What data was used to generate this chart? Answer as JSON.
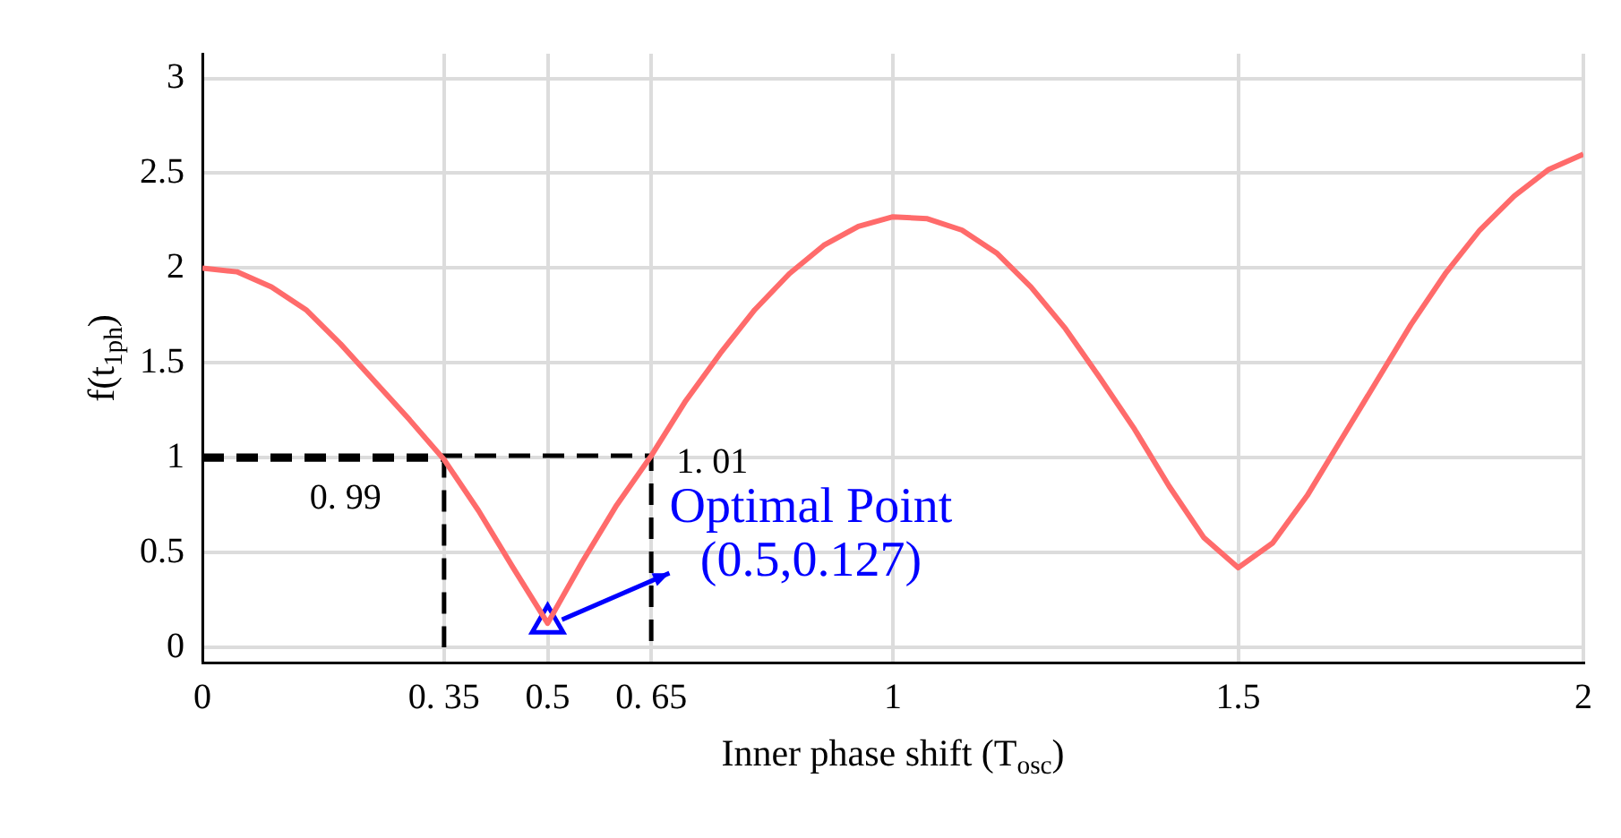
{
  "chart_data": {
    "type": "line",
    "xlabel": "Inner phase shift (T$_{osc}$)",
    "ylabel": "f(t$_{1ph}$)",
    "xlim": [
      0,
      2
    ],
    "ylim": [
      -0.08,
      3.13
    ],
    "xticks": [
      0,
      {
        "value": 0.35,
        "label": "0. 35"
      },
      0.5,
      {
        "value": 0.65,
        "label": "0. 65"
      },
      1,
      1.5,
      2
    ],
    "yticks": [
      0,
      0.5,
      1,
      1.5,
      2,
      2.5,
      3
    ],
    "grid": true,
    "legend": false,
    "series": [
      {
        "type": "line",
        "color": "#ff6b6b",
        "line_style": "solid",
        "marker": "none",
        "x": [
          0,
          0.05,
          0.1,
          0.15,
          0.2,
          0.25,
          0.3,
          0.35,
          0.4,
          0.45,
          0.5,
          0.55,
          0.6,
          0.65,
          0.7,
          0.75,
          0.8,
          0.85,
          0.9,
          0.95,
          1,
          1.05,
          1.1,
          1.15,
          1.2,
          1.25,
          1.3,
          1.35,
          1.4,
          1.45,
          1.5,
          1.55,
          1.6,
          1.65,
          1.7,
          1.75,
          1.8,
          1.85,
          1.9,
          1.95,
          2
        ],
        "values": [
          2,
          1.98,
          1.9,
          1.78,
          1.6,
          1.4,
          1.2,
          0.99,
          0.72,
          0.42,
          0.127,
          0.45,
          0.75,
          1.01,
          1.3,
          1.55,
          1.78,
          1.97,
          2.12,
          2.22,
          2.27,
          2.26,
          2.2,
          2.08,
          1.9,
          1.68,
          1.42,
          1.15,
          0.85,
          0.58,
          0.42,
          0.55,
          0.8,
          1.1,
          1.4,
          1.7,
          1.97,
          2.2,
          2.38,
          2.52,
          2.6
        ]
      },
      {
        "type": "line",
        "color": "#000000",
        "line_style": "dashed",
        "marker": "none",
        "x": [
          0,
          0.35,
          0.35
        ],
        "values": [
          0.99,
          0.99,
          0
        ]
      },
      {
        "type": "line",
        "color": "#000000",
        "line_style": "dashed",
        "marker": "none",
        "x": [
          0,
          0.65,
          0.65
        ],
        "values": [
          1.01,
          1.01,
          0
        ]
      },
      {
        "type": "scatter",
        "color": "#0000ff",
        "marker": "triangle",
        "x": [
          0.5
        ],
        "values": [
          0.127
        ]
      }
    ],
    "annotations": [
      {
        "text": "0. 99",
        "x": 0.35,
        "y": 0.99
      },
      {
        "text": "1. 01",
        "x": 0.65,
        "y": 1.01
      },
      {
        "text": "Optimal Point",
        "x": 0.5,
        "y": 0.127
      },
      "(0.5,0.127)"
    ]
  }
}
